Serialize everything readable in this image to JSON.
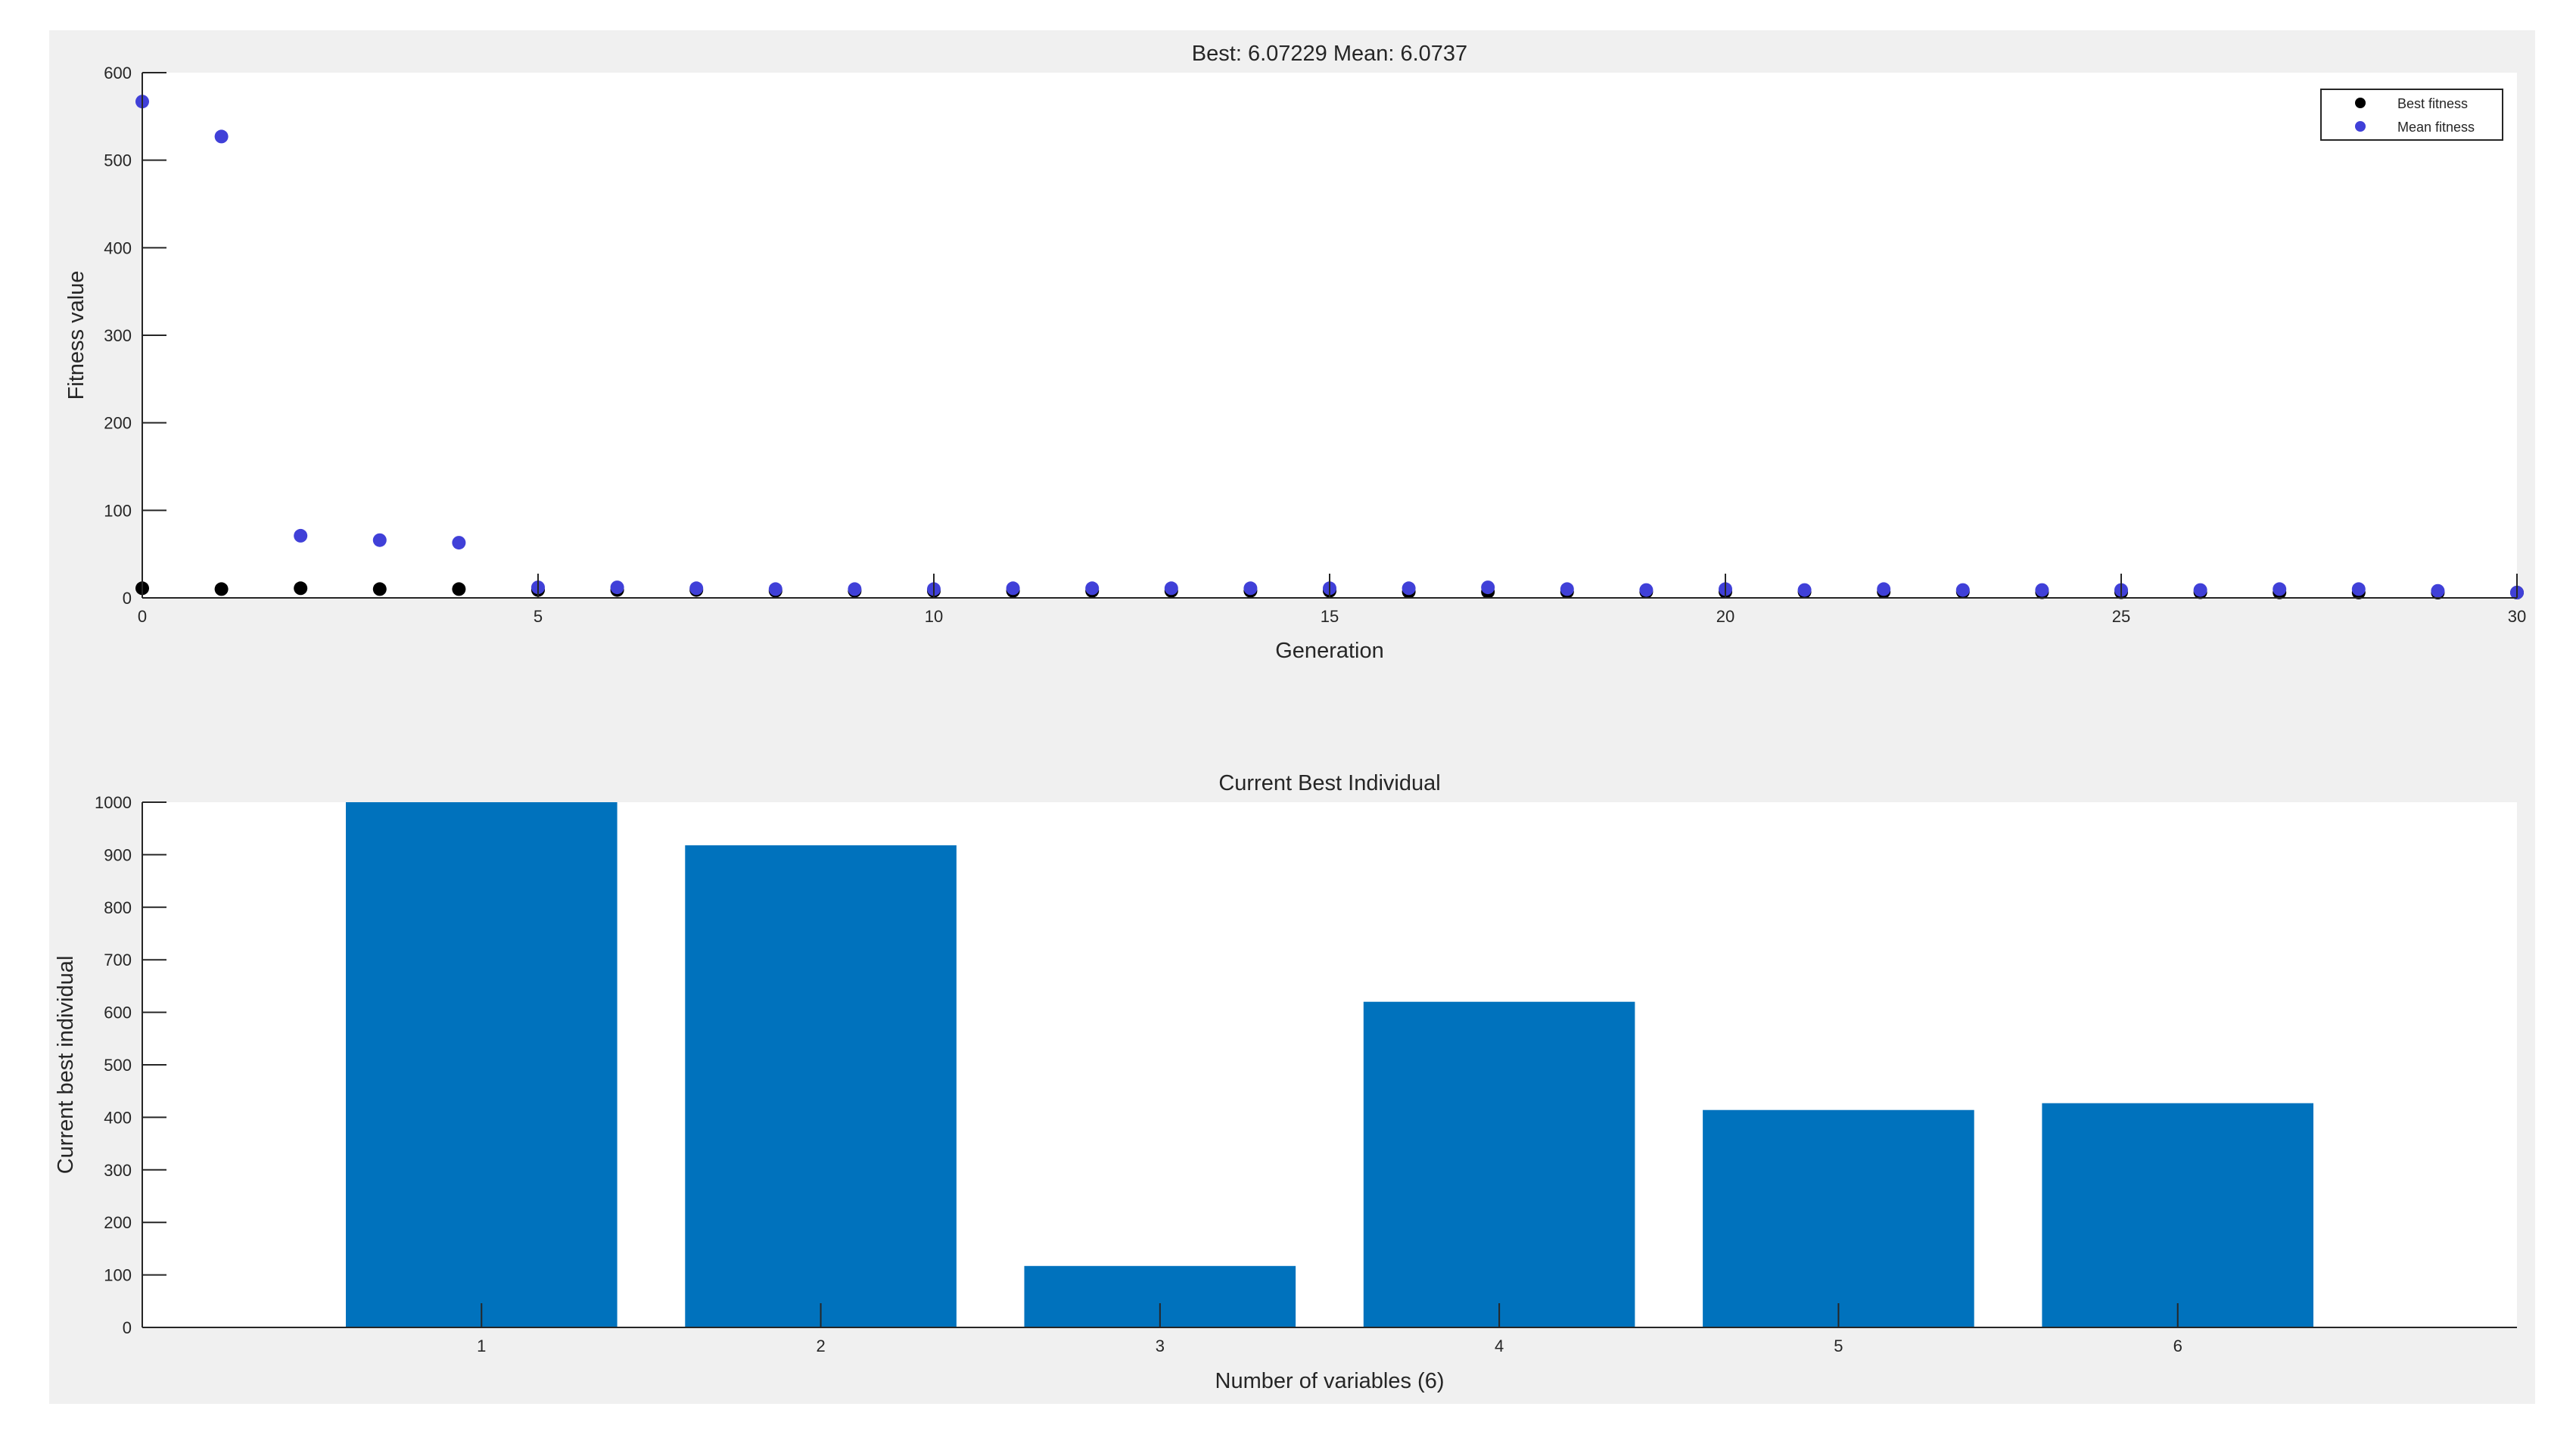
{
  "figure": {
    "background": "#f0f0f0",
    "axes_background": "#ffffff"
  },
  "chart_data": [
    {
      "type": "scatter",
      "title": "Best: 6.07229 Mean: 6.0737",
      "xlabel": "Generation",
      "ylabel": "Fitness value",
      "xlim": [
        0,
        30
      ],
      "ylim": [
        0,
        600
      ],
      "xticks": [
        0,
        5,
        10,
        15,
        20,
        25,
        30
      ],
      "yticks": [
        0,
        100,
        200,
        300,
        400,
        500,
        600
      ],
      "grid": false,
      "legend_position": "top-right",
      "series": [
        {
          "name": "Best fitness",
          "color": "#000000",
          "x": [
            0,
            1,
            2,
            3,
            4,
            5,
            6,
            7,
            8,
            9,
            10,
            11,
            12,
            13,
            14,
            15,
            16,
            17,
            18,
            19,
            20,
            21,
            22,
            23,
            24,
            25,
            26,
            27,
            28,
            29,
            30
          ],
          "y": [
            11,
            10,
            11,
            10,
            10,
            9,
            9,
            9,
            8,
            8,
            8,
            8,
            8,
            8,
            8,
            8,
            7,
            7,
            7,
            7,
            7,
            7,
            7,
            7,
            6.5,
            6.5,
            6.5,
            6.2,
            6.1,
            6.08,
            6.07229
          ]
        },
        {
          "name": "Mean fitness",
          "color": "#4040d8",
          "x": [
            0,
            1,
            2,
            3,
            4,
            5,
            6,
            7,
            8,
            9,
            10,
            11,
            12,
            13,
            14,
            15,
            16,
            17,
            18,
            19,
            20,
            21,
            22,
            23,
            24,
            25,
            26,
            27,
            28,
            29,
            30
          ],
          "y": [
            567,
            527,
            71,
            66,
            63,
            12,
            12,
            11,
            10,
            10,
            10,
            11,
            11,
            11,
            11,
            11,
            11,
            12,
            10,
            9,
            10,
            9,
            10,
            9,
            9,
            9,
            9,
            10,
            10,
            8,
            6.0737
          ]
        }
      ]
    },
    {
      "type": "bar",
      "title": "Current Best Individual",
      "xlabel": "Number of variables (6)",
      "ylabel": "Current best individual",
      "categories": [
        "1",
        "2",
        "3",
        "4",
        "5",
        "6"
      ],
      "values": [
        1000,
        918,
        117,
        620,
        414,
        427
      ],
      "xlim": [
        0,
        7
      ],
      "ylim": [
        0,
        1000
      ],
      "yticks": [
        0,
        100,
        200,
        300,
        400,
        500,
        600,
        700,
        800,
        900,
        1000
      ],
      "bar_color": "#0072bd",
      "grid": false
    }
  ]
}
